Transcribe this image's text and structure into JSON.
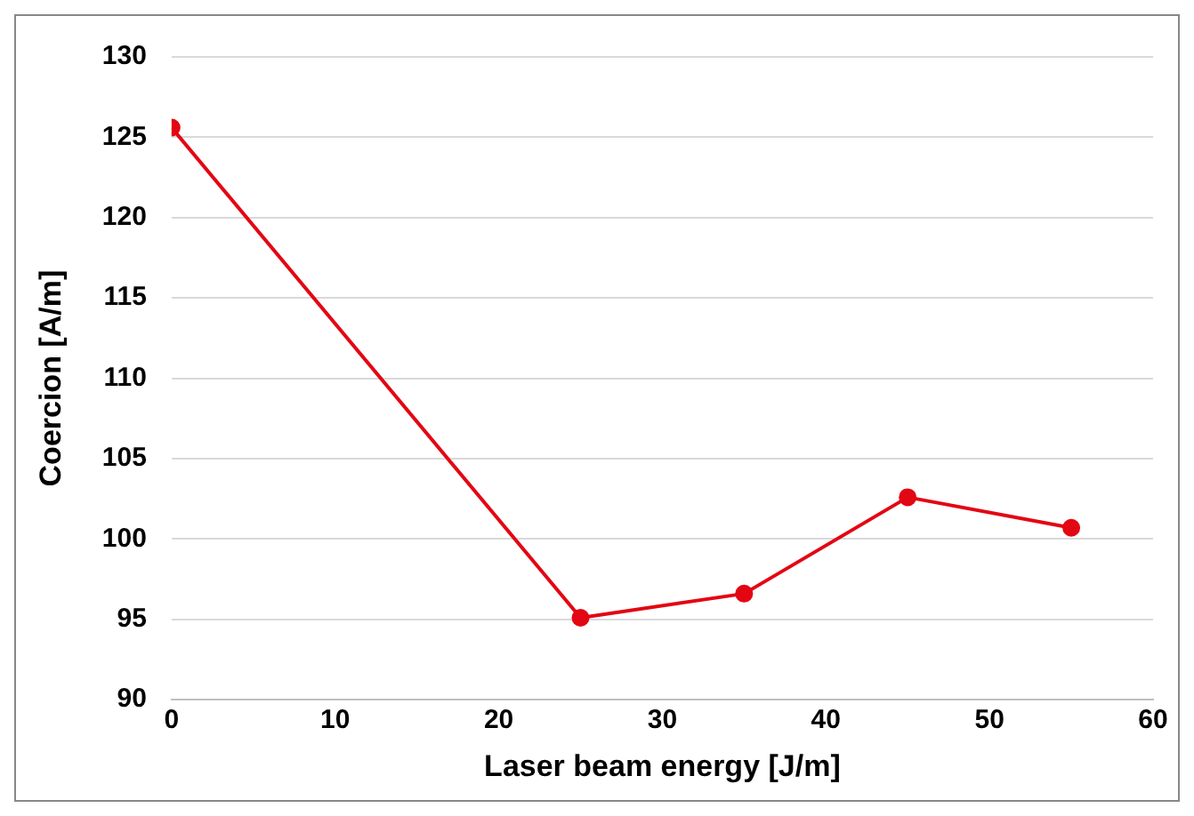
{
  "chart_data": {
    "type": "line",
    "xlabel": "Laser beam energy [J/m]",
    "ylabel": "Coercion [A/m]",
    "x": [
      0,
      25,
      35,
      45,
      55
    ],
    "series": [
      {
        "color": "#e30613",
        "values": [
          125.6,
          95.1,
          96.6,
          102.6,
          100.7
        ]
      }
    ],
    "xlim": [
      0,
      60
    ],
    "xticks": [
      0,
      10,
      20,
      30,
      40,
      50,
      60
    ],
    "ylim": [
      90,
      130
    ],
    "yticks": [
      90,
      95,
      100,
      105,
      110,
      115,
      120,
      125,
      130
    ],
    "grid": "y",
    "legend": false,
    "marker": "circle",
    "line_style": "solid"
  }
}
